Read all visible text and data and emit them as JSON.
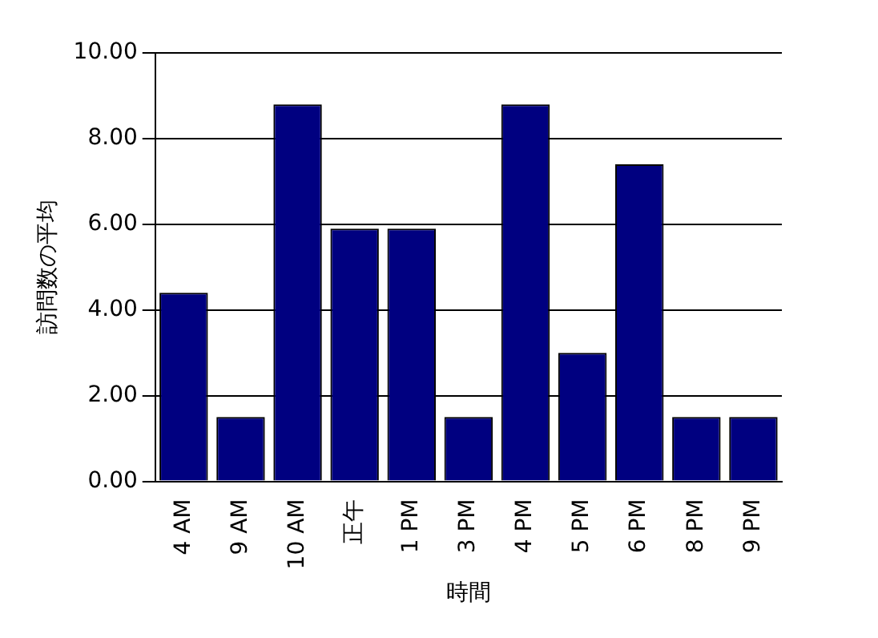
{
  "chart_data": {
    "type": "bar",
    "xlabel": "時間",
    "ylabel": "訪問数の平均",
    "categories": [
      "4 AM",
      "9 AM",
      "10 AM",
      "正午",
      "1 PM",
      "3 PM",
      "4 PM",
      "5 PM",
      "6 PM",
      "8 PM",
      "9 PM"
    ],
    "values": [
      4.4,
      1.5,
      8.8,
      5.9,
      5.9,
      1.5,
      8.8,
      3.0,
      7.4,
      1.5,
      1.5
    ],
    "color": "#000080",
    "ylim": [
      0,
      10
    ],
    "yticks": [
      {
        "value": 0,
        "label": "0.00"
      },
      {
        "value": 2,
        "label": "2.00"
      },
      {
        "value": 4,
        "label": "4.00"
      },
      {
        "value": 6,
        "label": "6.00"
      },
      {
        "value": 8,
        "label": "8.00"
      },
      {
        "value": 10,
        "label": "10.00"
      }
    ],
    "grid": "y",
    "legend": false
  }
}
